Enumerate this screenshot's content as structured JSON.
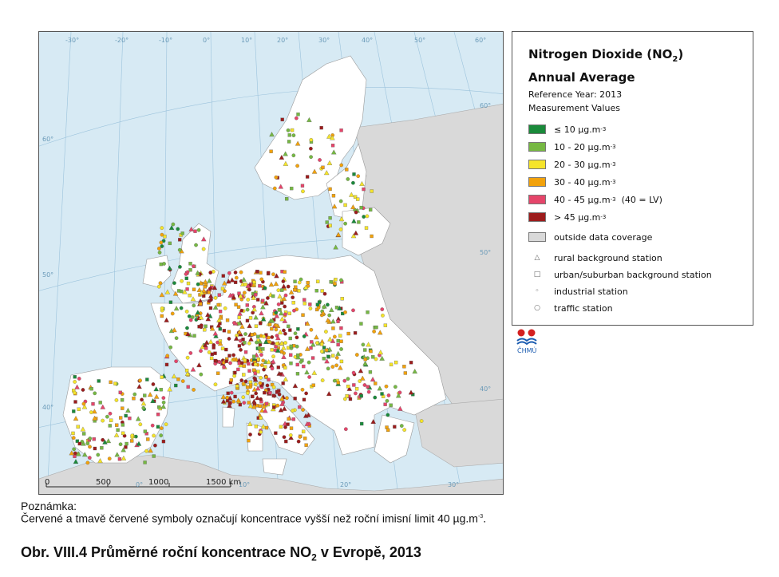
{
  "map": {
    "lon_ticks_top": [
      "-30°",
      "-20°",
      "-10°",
      "0°",
      "10°",
      "20°",
      "30°",
      "40°",
      "50°",
      "60°"
    ],
    "lon_ticks_bottom": [
      "0°",
      "10°",
      "20°",
      "30°"
    ],
    "lat_ticks_left": [
      "60°",
      "50°",
      "40°"
    ],
    "lat_ticks_right": [
      "60°",
      "50°",
      "40°"
    ],
    "scale_labels": [
      "0",
      "500",
      "1000",
      "1500 km"
    ],
    "colors": {
      "sea": "#d7eaf4",
      "land": "#ffffff",
      "outside": "#d9d9d9",
      "c1": "#1a8a3a",
      "c2": "#76b843",
      "c3": "#f5e42a",
      "c4": "#f2a20c",
      "c5": "#e5456a",
      "c6": "#9c1c1c"
    }
  },
  "legend": {
    "title_line1": "Nitrogen Dioxide (NO",
    "title_sub": "2",
    "title_end": ")",
    "title_line2": "Annual Average",
    "reference_year": "Reference Year: 2013",
    "measurement_values": "Measurement Values",
    "classes": [
      {
        "label": "≤ 10 µg.m",
        "sup": "-3",
        "extra": "",
        "color": "#1a8a3a"
      },
      {
        "label": "10 - 20 µg.m",
        "sup": "-3",
        "extra": "",
        "color": "#76b843"
      },
      {
        "label": "20 - 30 µg.m",
        "sup": "-3",
        "extra": "",
        "color": "#f5e42a"
      },
      {
        "label": "30 - 40 µg.m",
        "sup": "-3",
        "extra": "",
        "color": "#f2a20c"
      },
      {
        "label": "40 - 45 µg.m",
        "sup": "-3",
        "extra": "  (40 = LV)",
        "color": "#e5456a"
      },
      {
        "label": "> 45 µg.m",
        "sup": "-3",
        "extra": "",
        "color": "#9c1c1c"
      }
    ],
    "outside": {
      "label": "outside data coverage",
      "color": "#d9d9d9"
    },
    "station_types": [
      {
        "label": "rural background station",
        "icon": "triangle-icon",
        "glyph": "△"
      },
      {
        "label": "urban/suburban background station",
        "icon": "square-icon",
        "glyph": "□"
      },
      {
        "label": "industrial station",
        "icon": "diamond-icon",
        "glyph": "◦"
      },
      {
        "label": "traffic station",
        "icon": "circle-icon",
        "glyph": "○"
      }
    ]
  },
  "logo": {
    "text": "ČHMÚ"
  },
  "note": {
    "heading": "Poznámka:",
    "text": "Červené a tmavě červené symboly označují koncentrace vyšší než roční imisní limit 40 µg.m",
    "sup": "-3",
    "end": "."
  },
  "caption": {
    "prefix": "Obr. VIII.4  Průměrné roční koncentrace NO",
    "sub": "2",
    "suffix": " v Evropě, 2013"
  }
}
